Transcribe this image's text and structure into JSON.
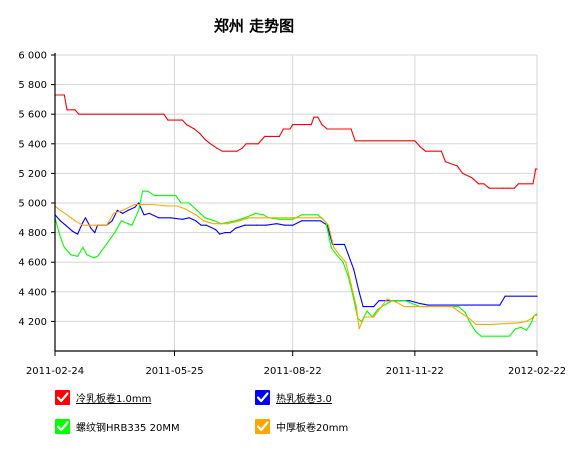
{
  "chart_data": {
    "type": "line",
    "title": "郑州 走势图",
    "y_ticks": [
      "6 000",
      "5 800",
      "5 600",
      "5 400",
      "5 200",
      "5 000",
      "4 800",
      "4 600",
      "4 400",
      "4 200"
    ],
    "x_ticks": [
      "2011-02-24",
      "2011-05-25",
      "2011-08-22",
      "2011-11-22",
      "2012-02-22"
    ],
    "ylim": [
      4000,
      6000
    ],
    "grid": true,
    "legend_position": "bottom",
    "series": [
      {
        "name": "冷乳板卷1.0mm",
        "color": "#ff0000",
        "linked": true,
        "points": [
          [
            "2011-02-24",
            5730
          ],
          [
            "2011-03-03",
            5730
          ],
          [
            "2011-03-05",
            5630
          ],
          [
            "2011-03-11",
            5630
          ],
          [
            "2011-03-14",
            5600
          ],
          [
            "2011-05-17",
            5600
          ],
          [
            "2011-05-20",
            5560
          ],
          [
            "2011-05-31",
            5560
          ],
          [
            "2011-06-03",
            5530
          ],
          [
            "2011-06-09",
            5500
          ],
          [
            "2011-06-13",
            5470
          ],
          [
            "2011-06-17",
            5430
          ],
          [
            "2011-06-21",
            5400
          ],
          [
            "2011-06-26",
            5370
          ],
          [
            "2011-06-30",
            5350
          ],
          [
            "2011-07-11",
            5350
          ],
          [
            "2011-07-15",
            5370
          ],
          [
            "2011-07-18",
            5400
          ],
          [
            "2011-07-27",
            5400
          ],
          [
            "2011-08-01",
            5450
          ],
          [
            "2011-08-12",
            5450
          ],
          [
            "2011-08-15",
            5500
          ],
          [
            "2011-08-20",
            5500
          ],
          [
            "2011-08-22",
            5530
          ],
          [
            "2011-09-05",
            5530
          ],
          [
            "2011-09-07",
            5580
          ],
          [
            "2011-09-10",
            5580
          ],
          [
            "2011-09-13",
            5530
          ],
          [
            "2011-09-17",
            5500
          ],
          [
            "2011-10-05",
            5500
          ],
          [
            "2011-10-08",
            5420
          ],
          [
            "2011-11-22",
            5420
          ],
          [
            "2011-11-26",
            5380
          ],
          [
            "2011-11-30",
            5350
          ],
          [
            "2011-12-12",
            5350
          ],
          [
            "2011-12-15",
            5280
          ],
          [
            "2011-12-24",
            5250
          ],
          [
            "2011-12-28",
            5200
          ],
          [
            "2012-01-04",
            5170
          ],
          [
            "2012-01-09",
            5130
          ],
          [
            "2012-01-13",
            5130
          ],
          [
            "2012-01-17",
            5100
          ],
          [
            "2012-01-27",
            5100
          ],
          [
            "2012-01-31",
            5100
          ],
          [
            "2012-02-05",
            5100
          ],
          [
            "2012-02-08",
            5130
          ],
          [
            "2012-02-19",
            5130
          ],
          [
            "2012-02-21",
            5230
          ],
          [
            "2012-02-22",
            5230
          ]
        ]
      },
      {
        "name": "热乳板卷3.0",
        "color": "#0000ff",
        "linked": true,
        "points": [
          [
            "2011-02-24",
            4920
          ],
          [
            "2011-02-28",
            4880
          ],
          [
            "2011-03-04",
            4850
          ],
          [
            "2011-03-09",
            4810
          ],
          [
            "2011-03-13",
            4790
          ],
          [
            "2011-03-17",
            4870
          ],
          [
            "2011-03-19",
            4900
          ],
          [
            "2011-03-23",
            4830
          ],
          [
            "2011-03-26",
            4800
          ],
          [
            "2011-03-28",
            4850
          ],
          [
            "2011-04-04",
            4850
          ],
          [
            "2011-04-08",
            4880
          ],
          [
            "2011-04-12",
            4950
          ],
          [
            "2011-04-16",
            4930
          ],
          [
            "2011-04-20",
            4950
          ],
          [
            "2011-04-25",
            4970
          ],
          [
            "2011-04-28",
            5000
          ],
          [
            "2011-05-02",
            4920
          ],
          [
            "2011-05-06",
            4930
          ],
          [
            "2011-05-13",
            4900
          ],
          [
            "2011-05-22",
            4900
          ],
          [
            "2011-05-31",
            4890
          ],
          [
            "2011-06-05",
            4900
          ],
          [
            "2011-06-10",
            4880
          ],
          [
            "2011-06-14",
            4850
          ],
          [
            "2011-06-18",
            4850
          ],
          [
            "2011-06-25",
            4820
          ],
          [
            "2011-06-28",
            4790
          ],
          [
            "2011-07-02",
            4800
          ],
          [
            "2011-07-06",
            4800
          ],
          [
            "2011-07-10",
            4830
          ],
          [
            "2011-07-17",
            4850
          ],
          [
            "2011-07-26",
            4850
          ],
          [
            "2011-08-02",
            4850
          ],
          [
            "2011-08-10",
            4860
          ],
          [
            "2011-08-16",
            4850
          ],
          [
            "2011-08-22",
            4850
          ],
          [
            "2011-08-29",
            4880
          ],
          [
            "2011-09-12",
            4880
          ],
          [
            "2011-09-17",
            4850
          ],
          [
            "2011-09-21",
            4720
          ],
          [
            "2011-09-30",
            4720
          ],
          [
            "2011-10-03",
            4650
          ],
          [
            "2011-10-07",
            4550
          ],
          [
            "2011-10-11",
            4400
          ],
          [
            "2011-10-14",
            4300
          ],
          [
            "2011-10-22",
            4300
          ],
          [
            "2011-10-26",
            4340
          ],
          [
            "2011-11-18",
            4340
          ],
          [
            "2011-11-26",
            4320
          ],
          [
            "2011-12-02",
            4310
          ],
          [
            "2012-01-25",
            4310
          ],
          [
            "2012-01-29",
            4370
          ],
          [
            "2012-02-22",
            4370
          ]
        ]
      },
      {
        "name": "螺纹钢HRB335 20MM",
        "color": "#00ff00",
        "linked": false,
        "points": [
          [
            "2011-02-24",
            4900
          ],
          [
            "2011-02-28",
            4770
          ],
          [
            "2011-03-03",
            4700
          ],
          [
            "2011-03-08",
            4650
          ],
          [
            "2011-03-13",
            4640
          ],
          [
            "2011-03-17",
            4700
          ],
          [
            "2011-03-20",
            4650
          ],
          [
            "2011-03-25",
            4630
          ],
          [
            "2011-03-28",
            4640
          ],
          [
            "2011-04-02",
            4700
          ],
          [
            "2011-04-06",
            4750
          ],
          [
            "2011-04-10",
            4800
          ],
          [
            "2011-04-15",
            4880
          ],
          [
            "2011-04-20",
            4860
          ],
          [
            "2011-04-23",
            4850
          ],
          [
            "2011-04-28",
            4950
          ],
          [
            "2011-05-01",
            5080
          ],
          [
            "2011-05-05",
            5080
          ],
          [
            "2011-05-10",
            5050
          ],
          [
            "2011-05-26",
            5050
          ],
          [
            "2011-05-30",
            5000
          ],
          [
            "2011-06-05",
            5000
          ],
          [
            "2011-06-11",
            4950
          ],
          [
            "2011-06-17",
            4900
          ],
          [
            "2011-06-24",
            4880
          ],
          [
            "2011-06-29",
            4860
          ],
          [
            "2011-07-10",
            4880
          ],
          [
            "2011-07-17",
            4900
          ],
          [
            "2011-07-25",
            4930
          ],
          [
            "2011-07-31",
            4920
          ],
          [
            "2011-08-04",
            4900
          ],
          [
            "2011-08-12",
            4890
          ],
          [
            "2011-08-22",
            4890
          ],
          [
            "2011-08-29",
            4920
          ],
          [
            "2011-09-10",
            4920
          ],
          [
            "2011-09-16",
            4870
          ],
          [
            "2011-09-20",
            4700
          ],
          [
            "2011-09-24",
            4650
          ],
          [
            "2011-09-29",
            4600
          ],
          [
            "2011-10-03",
            4500
          ],
          [
            "2011-10-07",
            4350
          ],
          [
            "2011-10-10",
            4220
          ],
          [
            "2011-10-13",
            4200
          ],
          [
            "2011-10-17",
            4270
          ],
          [
            "2011-10-21",
            4230
          ],
          [
            "2011-10-25",
            4280
          ],
          [
            "2011-10-28",
            4300
          ],
          [
            "2011-11-05",
            4340
          ],
          [
            "2011-11-15",
            4340
          ],
          [
            "2011-11-20",
            4320
          ],
          [
            "2011-11-26",
            4300
          ],
          [
            "2011-12-25",
            4300
          ],
          [
            "2011-12-30",
            4260
          ],
          [
            "2012-01-02",
            4200
          ],
          [
            "2012-01-07",
            4130
          ],
          [
            "2012-01-11",
            4100
          ],
          [
            "2012-02-01",
            4100
          ],
          [
            "2012-02-06",
            4150
          ],
          [
            "2012-02-10",
            4160
          ],
          [
            "2012-02-14",
            4140
          ],
          [
            "2012-02-17",
            4180
          ],
          [
            "2012-02-20",
            4240
          ],
          [
            "2012-02-22",
            4250
          ]
        ]
      },
      {
        "name": "中厚板卷20mm",
        "color": "#ffa500",
        "linked": false,
        "points": [
          [
            "2011-02-24",
            4980
          ],
          [
            "2011-02-28",
            4950
          ],
          [
            "2011-03-05",
            4920
          ],
          [
            "2011-03-11",
            4880
          ],
          [
            "2011-03-17",
            4850
          ],
          [
            "2011-04-04",
            4850
          ],
          [
            "2011-04-09",
            4930
          ],
          [
            "2011-04-16",
            4950
          ],
          [
            "2011-04-25",
            4990
          ],
          [
            "2011-05-08",
            4990
          ],
          [
            "2011-05-20",
            4980
          ],
          [
            "2011-05-27",
            4980
          ],
          [
            "2011-06-02",
            4960
          ],
          [
            "2011-06-10",
            4920
          ],
          [
            "2011-06-16",
            4880
          ],
          [
            "2011-06-23",
            4860
          ],
          [
            "2011-07-04",
            4860
          ],
          [
            "2011-07-13",
            4880
          ],
          [
            "2011-07-20",
            4900
          ],
          [
            "2011-08-08",
            4900
          ],
          [
            "2011-08-22",
            4900
          ],
          [
            "2011-09-13",
            4900
          ],
          [
            "2011-09-18",
            4850
          ],
          [
            "2011-09-22",
            4700
          ],
          [
            "2011-09-26",
            4650
          ],
          [
            "2011-10-01",
            4600
          ],
          [
            "2011-10-05",
            4450
          ],
          [
            "2011-10-09",
            4300
          ],
          [
            "2011-10-11",
            4150
          ],
          [
            "2011-10-15",
            4230
          ],
          [
            "2011-10-22",
            4230
          ],
          [
            "2011-10-28",
            4300
          ],
          [
            "2011-11-01",
            4350
          ],
          [
            "2011-11-08",
            4330
          ],
          [
            "2011-11-14",
            4300
          ],
          [
            "2011-12-20",
            4300
          ],
          [
            "2011-12-28",
            4250
          ],
          [
            "2012-01-02",
            4220
          ],
          [
            "2012-01-07",
            4180
          ],
          [
            "2012-01-18",
            4180
          ],
          [
            "2012-02-08",
            4190
          ],
          [
            "2012-02-14",
            4200
          ],
          [
            "2012-02-18",
            4220
          ],
          [
            "2012-02-20",
            4240
          ],
          [
            "2012-02-22",
            4240
          ]
        ]
      }
    ]
  }
}
